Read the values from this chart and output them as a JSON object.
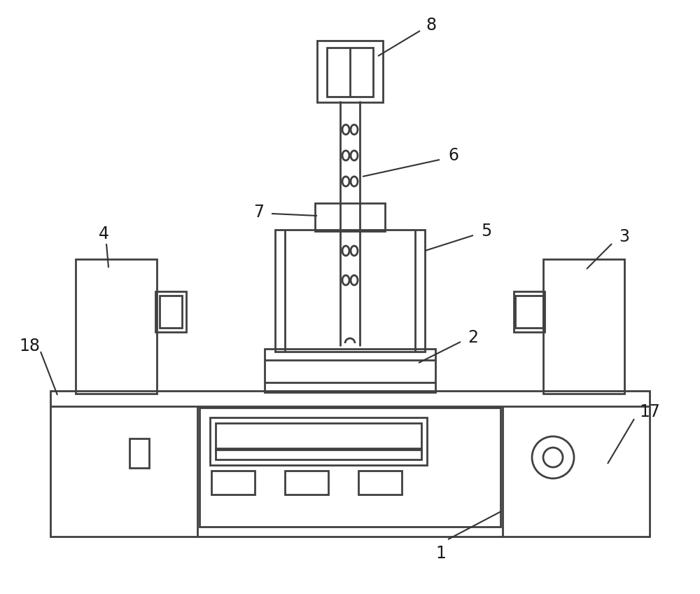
{
  "bg_color": "#ffffff",
  "line_color": "#404040",
  "line_width": 2.0,
  "fig_width": 10.0,
  "fig_height": 8.48,
  "label_fontsize": 17,
  "label_color": "#1a1a1a"
}
